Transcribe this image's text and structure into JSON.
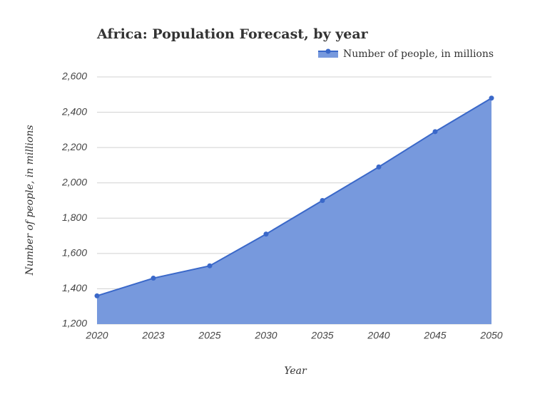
{
  "chart_data": {
    "type": "area",
    "title": "Africa: Population Forecast, by year",
    "x_label": "Year",
    "y_label": "Number of people, in millions",
    "categories": [
      "2020",
      "2023",
      "2025",
      "2030",
      "2035",
      "2040",
      "2045",
      "2050"
    ],
    "series": [
      {
        "name": "Number of people, in millions",
        "color": "#3a68c9",
        "fill": "#7799dd",
        "values": [
          1360,
          1460,
          1530,
          1710,
          1900,
          2090,
          2290,
          2480
        ]
      }
    ],
    "ylim": [
      1200,
      2600
    ],
    "yticks": [
      {
        "value": 1200,
        "label": "1,200"
      },
      {
        "value": 1400,
        "label": "1,400"
      },
      {
        "value": 1600,
        "label": "1,600"
      },
      {
        "value": 1800,
        "label": "1,800"
      },
      {
        "value": 2000,
        "label": "2,000"
      },
      {
        "value": 2200,
        "label": "2,200"
      },
      {
        "value": 2400,
        "label": "2,400"
      },
      {
        "value": 2600,
        "label": "2,600"
      }
    ],
    "grid": true,
    "legend": "top-right"
  }
}
